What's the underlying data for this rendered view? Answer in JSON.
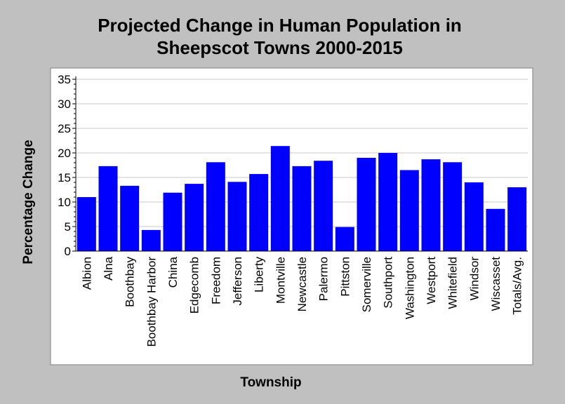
{
  "chart_data": {
    "type": "bar",
    "title": [
      "Projected Change in Human Population in",
      "Sheepscot Towns 2000-2015"
    ],
    "xlabel": "Township",
    "ylabel": "Percentage Change",
    "ylim": [
      0,
      35
    ],
    "yticks": [
      0,
      5,
      10,
      15,
      20,
      25,
      30,
      35
    ],
    "grid": true,
    "legend": "none",
    "bar_color": "#0000ff",
    "categories": [
      "Albion",
      "Alna",
      "Boothbay",
      "Boothbay Harbor",
      "China",
      "Edgecomb",
      "Freedom",
      "Jefferson",
      "Liberty",
      "Montville",
      "Newcastle",
      "Palermo",
      "Pittston",
      "Somerville",
      "Southport",
      "Washington",
      "Westport",
      "Whitefield",
      "Windsor",
      "Wiscasset",
      "Totals/Avg."
    ],
    "values": [
      11,
      17.3,
      13.3,
      4.3,
      11.9,
      13.7,
      18.1,
      14.1,
      15.7,
      21.4,
      17.3,
      18.4,
      4.9,
      19,
      20,
      16.5,
      18.7,
      18.1,
      14,
      8.6,
      13
    ]
  }
}
